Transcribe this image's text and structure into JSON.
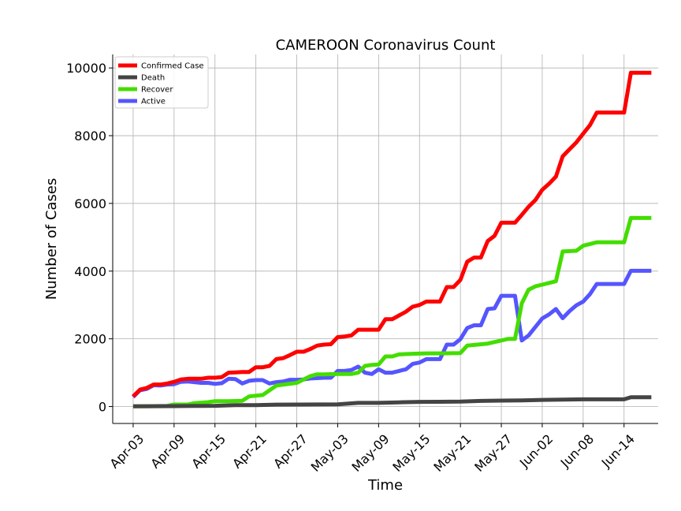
{
  "chart_data": {
    "type": "line",
    "title": "CAMEROON Coronavirus Count",
    "xlabel": "Time",
    "ylabel": "Number of Cases",
    "x_start": "2020-04-03",
    "x_end": "2020-06-18",
    "xlim": [
      "2020-03-31",
      "2020-06-19"
    ],
    "ylim": [
      -500,
      10400
    ],
    "x_ticks": [
      {
        "date": "2020-04-03",
        "label": "Apr-03"
      },
      {
        "date": "2020-04-09",
        "label": "Apr-09"
      },
      {
        "date": "2020-04-15",
        "label": "Apr-15"
      },
      {
        "date": "2020-04-21",
        "label": "Apr-21"
      },
      {
        "date": "2020-04-27",
        "label": "Apr-27"
      },
      {
        "date": "2020-05-03",
        "label": "May-03"
      },
      {
        "date": "2020-05-09",
        "label": "May-09"
      },
      {
        "date": "2020-05-15",
        "label": "May-15"
      },
      {
        "date": "2020-05-21",
        "label": "May-21"
      },
      {
        "date": "2020-05-27",
        "label": "May-27"
      },
      {
        "date": "2020-06-02",
        "label": "Jun-02"
      },
      {
        "date": "2020-06-08",
        "label": "Jun-08"
      },
      {
        "date": "2020-06-14",
        "label": "Jun-14"
      }
    ],
    "y_ticks": [
      {
        "value": 0,
        "label": "0"
      },
      {
        "value": 2000,
        "label": "2000"
      },
      {
        "value": 4000,
        "label": "4000"
      },
      {
        "value": 6000,
        "label": "6000"
      },
      {
        "value": 8000,
        "label": "8000"
      },
      {
        "value": 10000,
        "label": "10000"
      }
    ],
    "grid": true,
    "legend_position": "top-left",
    "series": [
      {
        "name": "Confirmed Case",
        "color": "#ff0000",
        "points": [
          [
            "2020-04-03",
            300
          ],
          [
            "2020-04-04",
            500
          ],
          [
            "2020-04-05",
            550
          ],
          [
            "2020-04-06",
            650
          ],
          [
            "2020-04-07",
            650
          ],
          [
            "2020-04-08",
            680
          ],
          [
            "2020-04-09",
            730
          ],
          [
            "2020-04-10",
            800
          ],
          [
            "2020-04-11",
            820
          ],
          [
            "2020-04-12",
            820
          ],
          [
            "2020-04-13",
            820
          ],
          [
            "2020-04-14",
            850
          ],
          [
            "2020-04-15",
            850
          ],
          [
            "2020-04-16",
            870
          ],
          [
            "2020-04-17",
            1000
          ],
          [
            "2020-04-18",
            1010
          ],
          [
            "2020-04-19",
            1020
          ],
          [
            "2020-04-20",
            1020
          ],
          [
            "2020-04-21",
            1160
          ],
          [
            "2020-04-22",
            1160
          ],
          [
            "2020-04-23",
            1200
          ],
          [
            "2020-04-24",
            1400
          ],
          [
            "2020-04-25",
            1430
          ],
          [
            "2020-04-26",
            1520
          ],
          [
            "2020-04-27",
            1620
          ],
          [
            "2020-04-28",
            1620
          ],
          [
            "2020-04-29",
            1700
          ],
          [
            "2020-04-30",
            1800
          ],
          [
            "2020-05-01",
            1830
          ],
          [
            "2020-05-02",
            1840
          ],
          [
            "2020-05-03",
            2050
          ],
          [
            "2020-05-04",
            2070
          ],
          [
            "2020-05-05",
            2100
          ],
          [
            "2020-05-06",
            2270
          ],
          [
            "2020-05-07",
            2270
          ],
          [
            "2020-05-08",
            2270
          ],
          [
            "2020-05-09",
            2270
          ],
          [
            "2020-05-10",
            2580
          ],
          [
            "2020-05-11",
            2580
          ],
          [
            "2020-05-12",
            2690
          ],
          [
            "2020-05-13",
            2800
          ],
          [
            "2020-05-14",
            2950
          ],
          [
            "2020-05-15",
            3000
          ],
          [
            "2020-05-16",
            3100
          ],
          [
            "2020-05-17",
            3100
          ],
          [
            "2020-05-18",
            3100
          ],
          [
            "2020-05-19",
            3530
          ],
          [
            "2020-05-20",
            3530
          ],
          [
            "2020-05-21",
            3740
          ],
          [
            "2020-05-22",
            4280
          ],
          [
            "2020-05-23",
            4400
          ],
          [
            "2020-05-24",
            4400
          ],
          [
            "2020-05-25",
            4890
          ],
          [
            "2020-05-26",
            5040
          ],
          [
            "2020-05-27",
            5430
          ],
          [
            "2020-05-28",
            5430
          ],
          [
            "2020-05-29",
            5430
          ],
          [
            "2020-05-30",
            5660
          ],
          [
            "2020-05-31",
            5900
          ],
          [
            "2020-06-01",
            6100
          ],
          [
            "2020-06-02",
            6400
          ],
          [
            "2020-06-03",
            6580
          ],
          [
            "2020-06-04",
            6790
          ],
          [
            "2020-06-05",
            7390
          ],
          [
            "2020-06-06",
            7600
          ],
          [
            "2020-06-07",
            7800
          ],
          [
            "2020-06-08",
            8060
          ],
          [
            "2020-06-09",
            8310
          ],
          [
            "2020-06-10",
            8680
          ],
          [
            "2020-06-11",
            8680
          ],
          [
            "2020-06-12",
            8680
          ],
          [
            "2020-06-13",
            8680
          ],
          [
            "2020-06-14",
            8680
          ],
          [
            "2020-06-15",
            9860
          ],
          [
            "2020-06-16",
            9860
          ],
          [
            "2020-06-17",
            9860
          ],
          [
            "2020-06-18",
            9860
          ]
        ]
      },
      {
        "name": "Death",
        "color": "#444444",
        "points": [
          [
            "2020-04-03",
            7
          ],
          [
            "2020-04-06",
            9
          ],
          [
            "2020-04-09",
            12
          ],
          [
            "2020-04-12",
            17
          ],
          [
            "2020-04-15",
            21
          ],
          [
            "2020-04-18",
            42
          ],
          [
            "2020-04-21",
            43
          ],
          [
            "2020-04-24",
            56
          ],
          [
            "2020-04-27",
            58
          ],
          [
            "2020-04-30",
            61
          ],
          [
            "2020-05-03",
            64
          ],
          [
            "2020-05-06",
            108
          ],
          [
            "2020-05-09",
            108
          ],
          [
            "2020-05-12",
            125
          ],
          [
            "2020-05-15",
            139
          ],
          [
            "2020-05-18",
            140
          ],
          [
            "2020-05-21",
            146
          ],
          [
            "2020-05-24",
            165
          ],
          [
            "2020-05-27",
            175
          ],
          [
            "2020-05-30",
            182
          ],
          [
            "2020-06-02",
            197
          ],
          [
            "2020-06-05",
            203
          ],
          [
            "2020-06-08",
            212
          ],
          [
            "2020-06-11",
            212
          ],
          [
            "2020-06-14",
            212
          ],
          [
            "2020-06-15",
            276
          ],
          [
            "2020-06-18",
            276
          ]
        ]
      },
      {
        "name": "Recover",
        "color": "#44dd00",
        "points": [
          [
            "2020-04-03",
            10
          ],
          [
            "2020-04-05",
            10
          ],
          [
            "2020-04-08",
            20
          ],
          [
            "2020-04-09",
            60
          ],
          [
            "2020-04-11",
            60
          ],
          [
            "2020-04-12",
            100
          ],
          [
            "2020-04-14",
            130
          ],
          [
            "2020-04-15",
            160
          ],
          [
            "2020-04-17",
            160
          ],
          [
            "2020-04-19",
            170
          ],
          [
            "2020-04-20",
            300
          ],
          [
            "2020-04-22",
            340
          ],
          [
            "2020-04-24",
            620
          ],
          [
            "2020-04-27",
            700
          ],
          [
            "2020-04-28",
            800
          ],
          [
            "2020-04-29",
            900
          ],
          [
            "2020-04-30",
            950
          ],
          [
            "2020-05-01",
            950
          ],
          [
            "2020-05-03",
            960
          ],
          [
            "2020-05-05",
            960
          ],
          [
            "2020-05-06",
            1000
          ],
          [
            "2020-05-07",
            1200
          ],
          [
            "2020-05-08",
            1230
          ],
          [
            "2020-05-09",
            1240
          ],
          [
            "2020-05-10",
            1480
          ],
          [
            "2020-05-11",
            1480
          ],
          [
            "2020-05-12",
            1540
          ],
          [
            "2020-05-13",
            1550
          ],
          [
            "2020-05-14",
            1560
          ],
          [
            "2020-05-16",
            1570
          ],
          [
            "2020-05-18",
            1570
          ],
          [
            "2020-05-21",
            1580
          ],
          [
            "2020-05-22",
            1800
          ],
          [
            "2020-05-25",
            1860
          ],
          [
            "2020-05-27",
            1950
          ],
          [
            "2020-05-28",
            2000
          ],
          [
            "2020-05-29",
            2000
          ],
          [
            "2020-05-30",
            3050
          ],
          [
            "2020-05-31",
            3450
          ],
          [
            "2020-06-01",
            3550
          ],
          [
            "2020-06-02",
            3600
          ],
          [
            "2020-06-03",
            3650
          ],
          [
            "2020-06-04",
            3700
          ],
          [
            "2020-06-05",
            4580
          ],
          [
            "2020-06-07",
            4600
          ],
          [
            "2020-06-08",
            4750
          ],
          [
            "2020-06-09",
            4800
          ],
          [
            "2020-06-10",
            4850
          ],
          [
            "2020-06-14",
            4850
          ],
          [
            "2020-06-15",
            5570
          ],
          [
            "2020-06-18",
            5570
          ]
        ]
      },
      {
        "name": "Active",
        "color": "#5555ff",
        "points": [
          [
            "2020-04-03",
            280
          ],
          [
            "2020-04-04",
            480
          ],
          [
            "2020-04-05",
            520
          ],
          [
            "2020-04-06",
            630
          ],
          [
            "2020-04-07",
            620
          ],
          [
            "2020-04-08",
            650
          ],
          [
            "2020-04-09",
            660
          ],
          [
            "2020-04-10",
            730
          ],
          [
            "2020-04-11",
            740
          ],
          [
            "2020-04-12",
            720
          ],
          [
            "2020-04-13",
            700
          ],
          [
            "2020-04-14",
            700
          ],
          [
            "2020-04-15",
            670
          ],
          [
            "2020-04-16",
            690
          ],
          [
            "2020-04-17",
            820
          ],
          [
            "2020-04-18",
            810
          ],
          [
            "2020-04-19",
            680
          ],
          [
            "2020-04-20",
            760
          ],
          [
            "2020-04-21",
            780
          ],
          [
            "2020-04-22",
            780
          ],
          [
            "2020-04-23",
            680
          ],
          [
            "2020-04-24",
            720
          ],
          [
            "2020-04-25",
            740
          ],
          [
            "2020-04-26",
            790
          ],
          [
            "2020-04-27",
            790
          ],
          [
            "2020-04-28",
            800
          ],
          [
            "2020-04-29",
            830
          ],
          [
            "2020-04-30",
            840
          ],
          [
            "2020-05-01",
            850
          ],
          [
            "2020-05-02",
            850
          ],
          [
            "2020-05-03",
            1050
          ],
          [
            "2020-05-04",
            1050
          ],
          [
            "2020-05-05",
            1080
          ],
          [
            "2020-05-06",
            1180
          ],
          [
            "2020-05-07",
            1000
          ],
          [
            "2020-05-08",
            960
          ],
          [
            "2020-05-09",
            1100
          ],
          [
            "2020-05-10",
            1000
          ],
          [
            "2020-05-11",
            1000
          ],
          [
            "2020-05-12",
            1050
          ],
          [
            "2020-05-13",
            1100
          ],
          [
            "2020-05-14",
            1260
          ],
          [
            "2020-05-15",
            1300
          ],
          [
            "2020-05-16",
            1400
          ],
          [
            "2020-05-17",
            1400
          ],
          [
            "2020-05-18",
            1400
          ],
          [
            "2020-05-19",
            1830
          ],
          [
            "2020-05-20",
            1830
          ],
          [
            "2020-05-21",
            1990
          ],
          [
            "2020-05-22",
            2320
          ],
          [
            "2020-05-23",
            2400
          ],
          [
            "2020-05-24",
            2400
          ],
          [
            "2020-05-25",
            2880
          ],
          [
            "2020-05-26",
            2900
          ],
          [
            "2020-05-27",
            3270
          ],
          [
            "2020-05-28",
            3270
          ],
          [
            "2020-05-29",
            3270
          ],
          [
            "2020-05-30",
            1950
          ],
          [
            "2020-05-31",
            2100
          ],
          [
            "2020-06-01",
            2350
          ],
          [
            "2020-06-02",
            2600
          ],
          [
            "2020-06-03",
            2720
          ],
          [
            "2020-06-04",
            2880
          ],
          [
            "2020-06-05",
            2610
          ],
          [
            "2020-06-06",
            2820
          ],
          [
            "2020-06-07",
            2990
          ],
          [
            "2020-06-08",
            3100
          ],
          [
            "2020-06-09",
            3320
          ],
          [
            "2020-06-10",
            3620
          ],
          [
            "2020-06-11",
            3620
          ],
          [
            "2020-06-12",
            3620
          ],
          [
            "2020-06-13",
            3620
          ],
          [
            "2020-06-14",
            3620
          ],
          [
            "2020-06-15",
            4010
          ],
          [
            "2020-06-16",
            4010
          ],
          [
            "2020-06-17",
            4010
          ],
          [
            "2020-06-18",
            4010
          ]
        ]
      }
    ]
  }
}
